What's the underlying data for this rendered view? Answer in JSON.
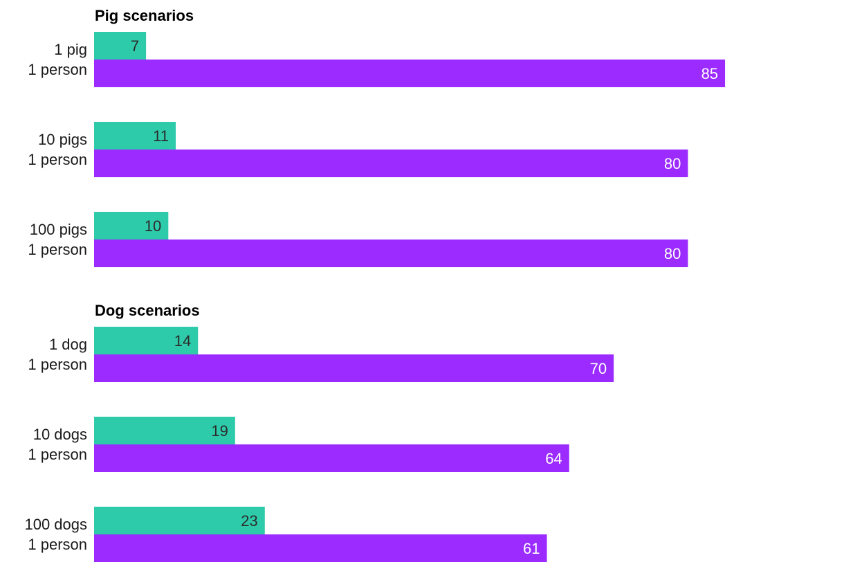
{
  "colors": {
    "series_a": "#2ecbaa",
    "series_b": "#9b2bff",
    "label_on_a": "#2b2b2b",
    "label_on_b": "#ffffff",
    "text": "#1a1a1a"
  },
  "chart_data": [
    {
      "type": "bar",
      "orientation": "horizontal",
      "title": "Pig scenarios",
      "categories": [
        [
          "1 pig",
          "1 person"
        ],
        [
          "10 pigs",
          "1 person"
        ],
        [
          "100 pigs",
          "1 person"
        ]
      ],
      "series": [
        {
          "values": [
            7,
            11,
            10
          ],
          "color": "#2ecbaa"
        },
        {
          "values": [
            85,
            80,
            80
          ],
          "color": "#9b2bff"
        }
      ],
      "xlim": [
        0,
        100
      ],
      "grid": false,
      "legend": "none"
    },
    {
      "type": "bar",
      "orientation": "horizontal",
      "title": "Dog scenarios",
      "categories": [
        [
          "1 dog",
          "1 person"
        ],
        [
          "10 dogs",
          "1 person"
        ],
        [
          "100 dogs",
          "1 person"
        ]
      ],
      "series": [
        {
          "values": [
            14,
            19,
            23
          ],
          "color": "#2ecbaa"
        },
        {
          "values": [
            70,
            64,
            61
          ],
          "color": "#9b2bff"
        }
      ],
      "xlim": [
        0,
        100
      ],
      "grid": false,
      "legend": "none"
    }
  ]
}
